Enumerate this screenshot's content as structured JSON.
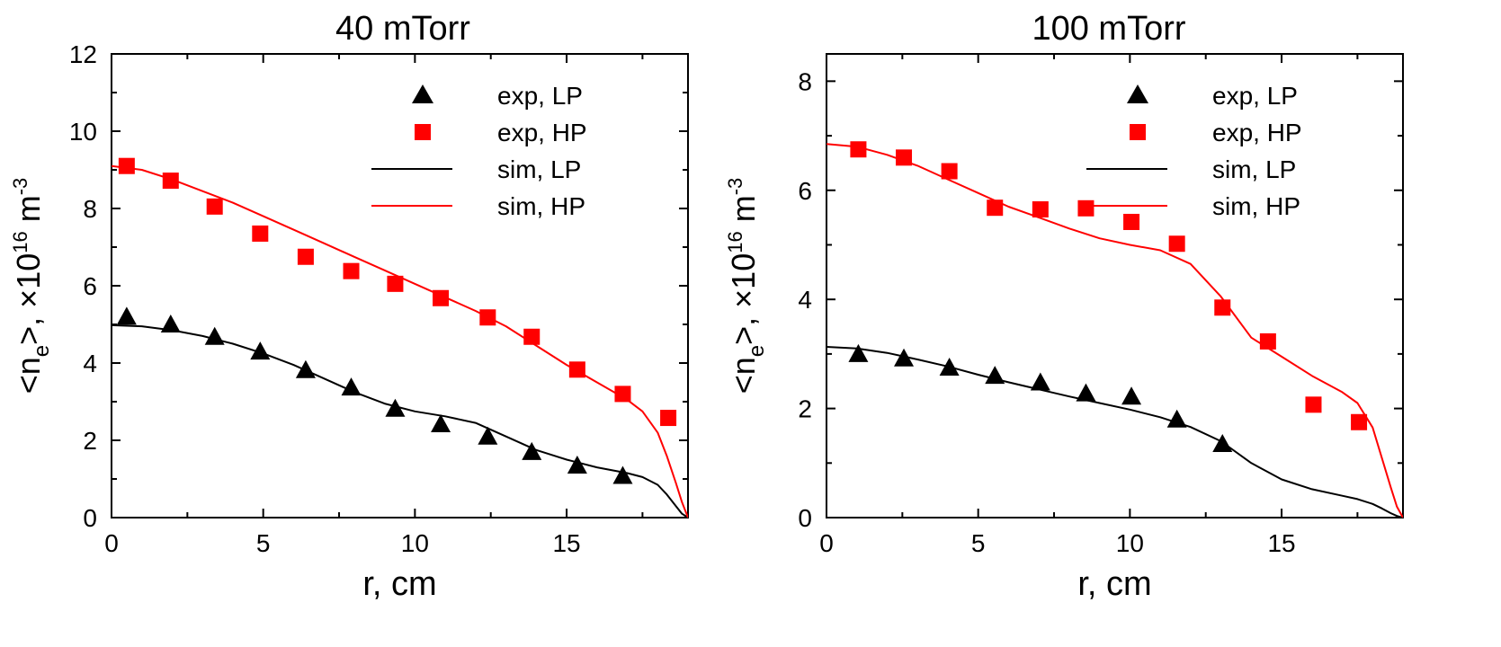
{
  "chart_data": [
    {
      "type": "line",
      "title": "40 mTorr",
      "xlabel": "r, cm",
      "ylabel": {
        "text_before_sub": "<n",
        "sub": "e",
        "text_after_sub": ">, ×10",
        "sup": "16",
        "unit": " m",
        "unit_sup": "-3"
      },
      "xlim": [
        0,
        19
      ],
      "ylim": [
        0,
        12
      ],
      "xticks": [
        0,
        5,
        10,
        15
      ],
      "yticks": [
        0,
        2,
        4,
        6,
        8,
        10,
        12
      ],
      "legend_position": "top-right",
      "series": [
        {
          "name": "exp, LP",
          "kind": "marker",
          "marker": "triangle",
          "color": "#000000",
          "x": [
            0.5,
            1.95,
            3.4,
            4.9,
            6.4,
            7.9,
            9.35,
            10.85,
            12.4,
            13.85,
            15.35,
            16.85
          ],
          "y": [
            5.2,
            5.0,
            4.68,
            4.3,
            3.82,
            3.37,
            2.82,
            2.42,
            2.1,
            1.7,
            1.35,
            1.08
          ]
        },
        {
          "name": "exp, HP",
          "kind": "marker",
          "marker": "square",
          "color": "#ff0000",
          "x": [
            0.5,
            1.95,
            3.4,
            4.9,
            6.4,
            7.9,
            9.35,
            10.85,
            12.4,
            13.85,
            15.35,
            16.85,
            18.35
          ],
          "y": [
            9.1,
            8.72,
            8.05,
            7.35,
            6.75,
            6.38,
            6.05,
            5.68,
            5.18,
            4.68,
            3.83,
            3.2,
            2.58
          ]
        },
        {
          "name": "sim, LP",
          "kind": "line",
          "color": "#000000",
          "x": [
            0,
            1,
            2,
            3,
            4,
            5,
            6,
            7,
            8,
            9,
            10,
            11,
            12,
            13,
            14,
            15,
            16,
            17,
            17.5,
            18,
            18.3,
            18.6,
            18.8,
            19
          ],
          "y": [
            4.98,
            4.95,
            4.85,
            4.7,
            4.5,
            4.25,
            3.95,
            3.6,
            3.25,
            2.95,
            2.75,
            2.62,
            2.45,
            2.1,
            1.75,
            1.5,
            1.3,
            1.15,
            1.05,
            0.85,
            0.6,
            0.3,
            0.1,
            0.0
          ]
        },
        {
          "name": "sim, HP",
          "kind": "line",
          "color": "#ff0000",
          "x": [
            0,
            1,
            2,
            3,
            4,
            5,
            6,
            7,
            8,
            9,
            10,
            11,
            12,
            13,
            14,
            15,
            16,
            17,
            17.5,
            18,
            18.3,
            18.6,
            18.8,
            19
          ],
          "y": [
            9.1,
            9.0,
            8.75,
            8.45,
            8.15,
            7.8,
            7.45,
            7.1,
            6.75,
            6.4,
            6.05,
            5.7,
            5.35,
            4.95,
            4.45,
            3.95,
            3.5,
            3.05,
            2.75,
            2.2,
            1.6,
            0.9,
            0.4,
            0.0
          ]
        }
      ]
    },
    {
      "type": "line",
      "title": "100 mTorr",
      "xlabel": "r, cm",
      "ylabel": {
        "text_before_sub": "<n",
        "sub": "e",
        "text_after_sub": ">, ×10",
        "sup": "16",
        "unit": " m",
        "unit_sup": "-3"
      },
      "xlim": [
        0,
        19
      ],
      "ylim": [
        0,
        8.5
      ],
      "xticks": [
        0,
        5,
        10,
        15
      ],
      "yticks": [
        0,
        2,
        4,
        6,
        8
      ],
      "legend_position": "top-right",
      "series": [
        {
          "name": "exp, LP",
          "kind": "marker",
          "marker": "triangle",
          "color": "#000000",
          "x": [
            1.05,
            2.55,
            4.05,
            5.55,
            7.05,
            8.55,
            10.05,
            11.55,
            13.05
          ],
          "y": [
            3.0,
            2.92,
            2.75,
            2.6,
            2.48,
            2.28,
            2.22,
            1.8,
            1.35
          ]
        },
        {
          "name": "exp, HP",
          "kind": "marker",
          "marker": "square",
          "color": "#ff0000",
          "x": [
            1.05,
            2.55,
            4.05,
            5.55,
            7.05,
            8.55,
            10.05,
            11.55,
            13.05,
            14.55,
            16.05,
            17.55
          ],
          "y": [
            6.75,
            6.6,
            6.35,
            5.68,
            5.65,
            5.67,
            5.42,
            5.02,
            3.85,
            3.23,
            2.07,
            1.75
          ]
        },
        {
          "name": "sim, LP",
          "kind": "line",
          "color": "#000000",
          "x": [
            0,
            1,
            2,
            3,
            4,
            5,
            6,
            7,
            8,
            9,
            10,
            11,
            12,
            13,
            14,
            15,
            16,
            17,
            17.5,
            18,
            18.3,
            18.6,
            18.8,
            19
          ],
          "y": [
            3.13,
            3.1,
            3.02,
            2.9,
            2.77,
            2.62,
            2.48,
            2.35,
            2.22,
            2.1,
            1.98,
            1.84,
            1.66,
            1.4,
            1.0,
            0.7,
            0.52,
            0.4,
            0.34,
            0.25,
            0.17,
            0.08,
            0.03,
            0.0
          ]
        },
        {
          "name": "sim, HP",
          "kind": "line",
          "color": "#ff0000",
          "x": [
            0,
            1,
            2,
            3,
            4,
            5,
            6,
            7,
            8,
            9,
            10,
            11,
            12,
            13,
            14,
            15,
            16,
            17,
            17.5,
            18,
            18.3,
            18.6,
            18.8,
            19
          ],
          "y": [
            6.85,
            6.8,
            6.65,
            6.45,
            6.2,
            5.95,
            5.7,
            5.5,
            5.3,
            5.12,
            5.0,
            4.9,
            4.65,
            4.05,
            3.3,
            2.95,
            2.6,
            2.3,
            2.1,
            1.65,
            1.1,
            0.55,
            0.2,
            0.0
          ]
        }
      ]
    }
  ]
}
